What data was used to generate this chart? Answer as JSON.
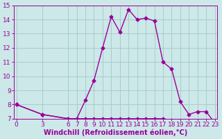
{
  "xlabel": "Windchill (Refroidissement éolien,°C)",
  "x_values": [
    0,
    3,
    6,
    7,
    8,
    9,
    10,
    11,
    12,
    13,
    14,
    15,
    16,
    17,
    18,
    19,
    20,
    21,
    22,
    23
  ],
  "y1_values": [
    8.0,
    7.3,
    7.0,
    7.0,
    8.3,
    9.7,
    12.0,
    14.2,
    13.1,
    14.7,
    14.0,
    14.1,
    13.9,
    11.0,
    10.5,
    8.2,
    7.3,
    7.5,
    7.5,
    6.7
  ],
  "y2_values": [
    8.0,
    7.3,
    7.0,
    7.0,
    7.0,
    7.0,
    7.0,
    7.0,
    7.0,
    7.0,
    7.0,
    7.0,
    7.0,
    7.0,
    6.9,
    6.8,
    6.8,
    6.8,
    6.8,
    6.7
  ],
  "line_color": "#990099",
  "bg_color": "#cce8e8",
  "grid_color": "#aacccc",
  "ylim": [
    7,
    15
  ],
  "yticks": [
    7,
    8,
    9,
    10,
    11,
    12,
    13,
    14,
    15
  ],
  "xtick_labels": [
    "0",
    "3",
    "6",
    "7",
    "8",
    "9",
    "10",
    "11",
    "12",
    "13",
    "14",
    "15",
    "16",
    "17",
    "18",
    "19",
    "20",
    "21",
    "22",
    "23"
  ],
  "marker_size": 2.5,
  "line_width": 1.0,
  "font_size": 6.5,
  "xlabel_fontsize": 7.0
}
